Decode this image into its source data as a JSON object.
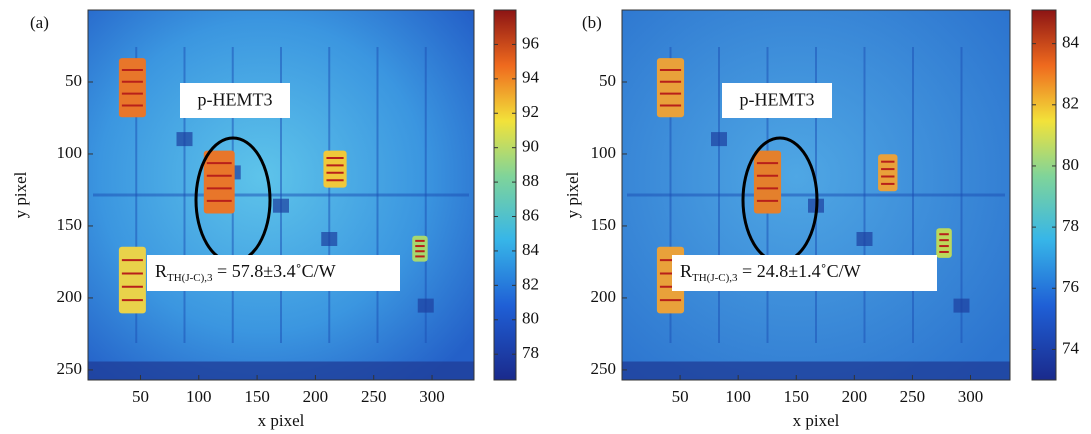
{
  "chart_data": [
    {
      "type": "heatmap",
      "panel_label": "(a)",
      "xlabel": "x pixel",
      "ylabel": "y pixel",
      "xlim": [
        5,
        336
      ],
      "ylim": [
        0,
        257
      ],
      "xticks": [
        50,
        100,
        150,
        200,
        250,
        300
      ],
      "yticks": [
        50,
        100,
        150,
        200,
        250
      ],
      "colorbar": {
        "clim": [
          76.5,
          98
        ],
        "ticks": [
          78,
          80,
          82,
          84,
          86,
          88,
          90,
          92,
          94,
          96
        ]
      },
      "annotations": {
        "device": "p-HEMT3",
        "resistance": {
          "symbol": "R",
          "subscript": "TH(J-C),3",
          "text": " = 57.8±3.4˚C/W"
        }
      }
    },
    {
      "type": "heatmap",
      "panel_label": "(b)",
      "xlabel": "x pixel",
      "ylabel": "y pixel",
      "xlim": [
        0,
        334
      ],
      "ylim": [
        0,
        257
      ],
      "xticks": [
        50,
        100,
        150,
        200,
        250,
        300
      ],
      "yticks": [
        50,
        100,
        150,
        200,
        250
      ],
      "colorbar": {
        "clim": [
          73,
          85.1
        ],
        "ticks": [
          74,
          76,
          78,
          80,
          82,
          84
        ]
      },
      "annotations": {
        "device": "p-HEMT3",
        "resistance": {
          "symbol": "R",
          "subscript": "TH(J-C),3",
          "text": " = 24.8±1.4˚C/W"
        }
      }
    }
  ]
}
